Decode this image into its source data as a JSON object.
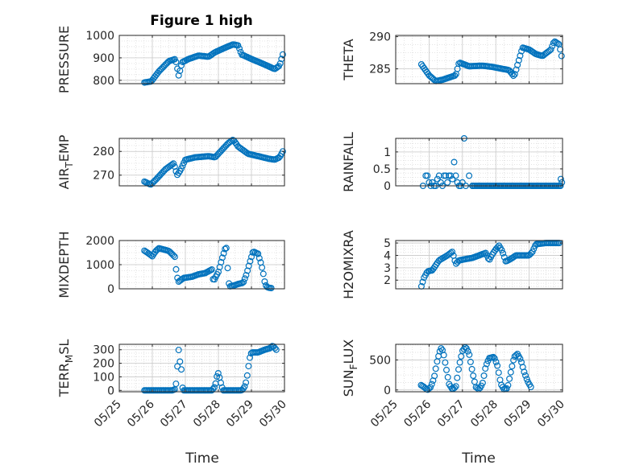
{
  "figure": {
    "title": "Figure 1 high",
    "xlabel": "Time",
    "xticks": [
      "05/25",
      "05/26",
      "05/27",
      "05/28",
      "05/29",
      "05/30"
    ],
    "marker_color": "#0072BD",
    "grid_color": "#c8c8c8"
  },
  "chart_data": [
    {
      "type": "scatter",
      "ylabel_main": "PRESSURE",
      "ylabel_sub": "",
      "ylim": [
        785,
        1000
      ],
      "yticks": [
        800,
        900,
        1000
      ],
      "xlim": [
        0,
        5
      ],
      "knots": [
        [
          0.76,
          790
        ],
        [
          0.97,
          795
        ],
        [
          1.2,
          840
        ],
        [
          1.5,
          885
        ],
        [
          1.7,
          895
        ],
        [
          1.8,
          820
        ],
        [
          1.9,
          880
        ],
        [
          2.1,
          895
        ],
        [
          2.4,
          910
        ],
        [
          2.7,
          905
        ],
        [
          2.9,
          925
        ],
        [
          3.2,
          945
        ],
        [
          3.45,
          960
        ],
        [
          3.6,
          955
        ],
        [
          3.7,
          915
        ],
        [
          4.0,
          895
        ],
        [
          4.4,
          870
        ],
        [
          4.7,
          850
        ],
        [
          4.85,
          865
        ],
        [
          4.95,
          915
        ]
      ]
    },
    {
      "type": "scatter",
      "ylabel_main": "THETA",
      "ylabel_sub": "",
      "ylim": [
        282.7,
        290.2
      ],
      "yticks": [
        285,
        290
      ],
      "xlim": [
        0,
        5
      ],
      "knots": [
        [
          0.77,
          285.7
        ],
        [
          1.0,
          284.0
        ],
        [
          1.2,
          283.1
        ],
        [
          1.4,
          283.3
        ],
        [
          1.8,
          284.0
        ],
        [
          1.9,
          286.0
        ],
        [
          2.2,
          285.4
        ],
        [
          2.6,
          285.5
        ],
        [
          2.9,
          285.3
        ],
        [
          3.4,
          284.8
        ],
        [
          3.55,
          283.8
        ],
        [
          3.7,
          286.5
        ],
        [
          3.8,
          288.3
        ],
        [
          4.0,
          288.0
        ],
        [
          4.2,
          287.3
        ],
        [
          4.4,
          287.0
        ],
        [
          4.65,
          288.0
        ],
        [
          4.75,
          289.3
        ],
        [
          4.9,
          288.8
        ],
        [
          4.97,
          287.0
        ]
      ]
    },
    {
      "type": "scatter",
      "ylabel_main": "AIR",
      "ylabel_sub": "T",
      "ylabel_after": "EMP",
      "ylim": [
        265.5,
        285.5
      ],
      "yticks": [
        270,
        280
      ],
      "xlim": [
        0,
        5
      ],
      "knots": [
        [
          0.76,
          267.3
        ],
        [
          0.95,
          266.0
        ],
        [
          1.1,
          268.0
        ],
        [
          1.4,
          272.5
        ],
        [
          1.65,
          275.0
        ],
        [
          1.75,
          270.0
        ],
        [
          1.85,
          272.0
        ],
        [
          2.0,
          276.5
        ],
        [
          2.3,
          277.5
        ],
        [
          2.7,
          278.0
        ],
        [
          2.9,
          277.5
        ],
        [
          3.1,
          280.5
        ],
        [
          3.3,
          283.5
        ],
        [
          3.45,
          285.0
        ],
        [
          3.6,
          282.0
        ],
        [
          3.9,
          279.0
        ],
        [
          4.2,
          278.0
        ],
        [
          4.5,
          277.0
        ],
        [
          4.7,
          276.5
        ],
        [
          4.85,
          277.5
        ],
        [
          4.95,
          280.0
        ]
      ]
    },
    {
      "type": "scatter",
      "ylabel_main": "RAINFALL",
      "ylabel_sub": "",
      "ylim": [
        0,
        1.4
      ],
      "yticks": [
        0,
        0.5,
        1
      ],
      "xlim": [
        0,
        5
      ],
      "points": [
        [
          0.82,
          0
        ],
        [
          0.9,
          0.3
        ],
        [
          0.95,
          0.3
        ],
        [
          1.0,
          0.1
        ],
        [
          1.05,
          0
        ],
        [
          1.1,
          0.1
        ],
        [
          1.15,
          0
        ],
        [
          1.2,
          0
        ],
        [
          1.25,
          0.2
        ],
        [
          1.3,
          0.3
        ],
        [
          1.35,
          0.1
        ],
        [
          1.4,
          0
        ],
        [
          1.45,
          0.3
        ],
        [
          1.5,
          0.3
        ],
        [
          1.55,
          0.1
        ],
        [
          1.6,
          0.3
        ],
        [
          1.65,
          0.3
        ],
        [
          1.7,
          0.2
        ],
        [
          1.75,
          0.7
        ],
        [
          1.8,
          0.3
        ],
        [
          1.85,
          0.1
        ],
        [
          1.9,
          0
        ],
        [
          1.95,
          0
        ],
        [
          2.0,
          0.1
        ],
        [
          2.05,
          1.4
        ],
        [
          2.1,
          0
        ],
        [
          2.2,
          0.3
        ],
        [
          2.3,
          0
        ]
      ],
      "zero_range": [
        2.3,
        4.95
      ],
      "end_points": [
        [
          4.95,
          0.2
        ],
        [
          4.98,
          0.1
        ]
      ]
    },
    {
      "type": "scatter",
      "ylabel_main": "MIXDEPTH",
      "ylabel_sub": "",
      "ylim": [
        0,
        2000
      ],
      "yticks": [
        0,
        1000,
        2000
      ],
      "xlim": [
        0,
        5
      ],
      "knots": [
        [
          0.76,
          1580
        ],
        [
          0.85,
          1500
        ],
        [
          0.95,
          1400
        ],
        [
          1.0,
          1350
        ],
        [
          1.1,
          1560
        ],
        [
          1.2,
          1680
        ],
        [
          1.5,
          1570
        ],
        [
          1.7,
          1300
        ],
        [
          1.73,
          560
        ],
        [
          1.8,
          300
        ],
        [
          1.95,
          450
        ],
        [
          2.2,
          500
        ],
        [
          2.4,
          600
        ],
        [
          2.6,
          650
        ],
        [
          2.8,
          800
        ],
        [
          2.85,
          300
        ],
        [
          2.9,
          450
        ],
        [
          3.0,
          700
        ],
        [
          3.1,
          1200
        ],
        [
          3.2,
          1650
        ],
        [
          3.25,
          1700
        ],
        [
          3.3,
          300
        ],
        [
          3.35,
          100
        ],
        [
          3.5,
          150
        ],
        [
          3.6,
          200
        ],
        [
          3.75,
          250
        ],
        [
          3.85,
          600
        ],
        [
          3.95,
          1100
        ],
        [
          4.05,
          1550
        ],
        [
          4.2,
          1450
        ],
        [
          4.3,
          1000
        ],
        [
          4.35,
          700
        ],
        [
          4.4,
          300
        ],
        [
          4.45,
          100
        ],
        [
          4.5,
          50
        ],
        [
          4.6,
          30
        ]
      ]
    },
    {
      "type": "scatter",
      "ylabel_main": "H2OMIXRA",
      "ylabel_sub": "",
      "ylim": [
        1.3,
        5.2
      ],
      "yticks": [
        2,
        3,
        4,
        5
      ],
      "xlim": [
        0,
        5
      ],
      "knots": [
        [
          0.77,
          1.5
        ],
        [
          0.85,
          2.2
        ],
        [
          0.95,
          2.7
        ],
        [
          1.1,
          2.8
        ],
        [
          1.3,
          3.6
        ],
        [
          1.55,
          4.0
        ],
        [
          1.7,
          4.3
        ],
        [
          1.75,
          3.8
        ],
        [
          1.8,
          3.3
        ],
        [
          1.9,
          3.6
        ],
        [
          2.1,
          3.7
        ],
        [
          2.3,
          3.8
        ],
        [
          2.5,
          4.0
        ],
        [
          2.7,
          4.2
        ],
        [
          2.8,
          3.6
        ],
        [
          2.9,
          4.1
        ],
        [
          3.0,
          4.5
        ],
        [
          3.1,
          4.8
        ],
        [
          3.2,
          4.3
        ],
        [
          3.3,
          3.5
        ],
        [
          3.5,
          3.8
        ],
        [
          3.6,
          4.0
        ],
        [
          3.8,
          4.0
        ],
        [
          4.0,
          4.0
        ],
        [
          4.1,
          4.3
        ],
        [
          4.2,
          4.9
        ],
        [
          4.5,
          5.0
        ],
        [
          4.9,
          5.0
        ]
      ]
    },
    {
      "type": "scatter",
      "ylabel_main": "TERR",
      "ylabel_sub": "M",
      "ylabel_after": "SL",
      "ylim": [
        -10,
        340
      ],
      "yticks": [
        0,
        100,
        200,
        300
      ],
      "xlim": [
        0,
        5
      ],
      "knots": [
        [
          0.76,
          0
        ],
        [
          1.6,
          0
        ],
        [
          1.7,
          10
        ],
        [
          1.75,
          120
        ],
        [
          1.78,
          350
        ],
        [
          1.82,
          230
        ],
        [
          1.85,
          200
        ],
        [
          1.88,
          150
        ],
        [
          1.9,
          30
        ],
        [
          1.95,
          0
        ],
        [
          2.8,
          0
        ],
        [
          2.9,
          30
        ],
        [
          2.95,
          100
        ],
        [
          3.0,
          130
        ],
        [
          3.05,
          80
        ],
        [
          3.1,
          30
        ],
        [
          3.15,
          0
        ],
        [
          3.7,
          0
        ],
        [
          3.78,
          20
        ],
        [
          3.85,
          70
        ],
        [
          3.9,
          160
        ],
        [
          3.95,
          240
        ],
        [
          4.0,
          280
        ],
        [
          4.2,
          280
        ],
        [
          4.4,
          300
        ],
        [
          4.55,
          310
        ],
        [
          4.65,
          330
        ],
        [
          4.75,
          300
        ]
      ]
    },
    {
      "type": "scatter",
      "ylabel_main": "SUN",
      "ylabel_sub": "F",
      "ylabel_after": "LUX",
      "ylim": [
        -30,
        760
      ],
      "yticks": [
        0,
        500
      ],
      "xlim": [
        0,
        5
      ],
      "knots": [
        [
          0.76,
          80
        ],
        [
          0.85,
          50
        ],
        [
          0.95,
          0
        ],
        [
          1.05,
          50
        ],
        [
          1.15,
          200
        ],
        [
          1.25,
          500
        ],
        [
          1.35,
          700
        ],
        [
          1.42,
          650
        ],
        [
          1.5,
          400
        ],
        [
          1.6,
          100
        ],
        [
          1.7,
          10
        ],
        [
          1.8,
          50
        ],
        [
          1.9,
          400
        ],
        [
          2.0,
          650
        ],
        [
          2.1,
          720
        ],
        [
          2.2,
          600
        ],
        [
          2.3,
          300
        ],
        [
          2.4,
          50
        ],
        [
          2.5,
          10
        ],
        [
          2.6,
          100
        ],
        [
          2.7,
          400
        ],
        [
          2.8,
          530
        ],
        [
          2.95,
          550
        ],
        [
          3.05,
          400
        ],
        [
          3.15,
          100
        ],
        [
          3.25,
          10
        ],
        [
          3.35,
          30
        ],
        [
          3.45,
          300
        ],
        [
          3.55,
          550
        ],
        [
          3.65,
          600
        ],
        [
          3.75,
          500
        ],
        [
          3.85,
          300
        ],
        [
          3.95,
          150
        ],
        [
          4.05,
          50
        ]
      ]
    }
  ]
}
